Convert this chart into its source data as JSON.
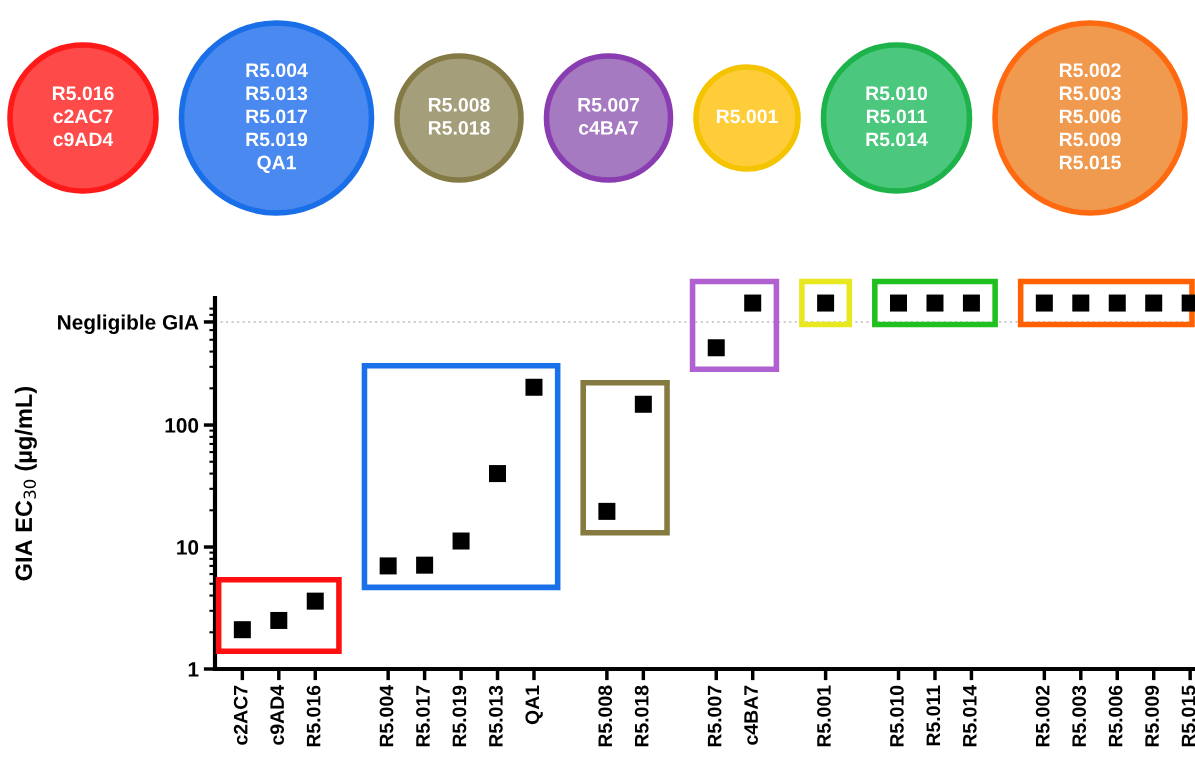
{
  "chart_data": {
    "type": "scatter",
    "ylabel": "GIA EC$_{30}$ (µg/mL)",
    "categories": [
      "c2AC7",
      "c9AD4",
      "R5.016",
      null,
      "R5.004",
      "R5.017",
      "R5.019",
      "R5.013",
      "QA1",
      null,
      "R5.008",
      "R5.018",
      null,
      "R5.007",
      "c4BA7",
      null,
      "R5.001",
      null,
      "R5.010",
      "R5.011",
      "R5.014",
      null,
      "R5.002",
      "R5.003",
      "R5.006",
      "R5.009",
      "R5.015"
    ],
    "values": [
      2.1,
      2.5,
      3.6,
      null,
      7.0,
      7.1,
      11.2,
      40,
      204,
      null,
      19.6,
      148,
      null,
      430,
      1000,
      null,
      1000,
      null,
      1000,
      1000,
      1000,
      null,
      1000,
      1000,
      1000,
      1000,
      1000
    ],
    "color": "#000000",
    "marker": "square",
    "log": "y",
    "ylim": [
      1,
      1100
    ],
    "yticks": [
      1,
      10,
      100,
      {
        "value": 700,
        "label": "Negligible GIA"
      }
    ],
    "ref_lines": [
      {
        "axis": "y",
        "value": 700,
        "color": "#cccccc",
        "line_style": "dotted"
      }
    ],
    "annotations": [
      "R5.016\nc2AC7\nc9AD4",
      "R5.004\nR5.013\nR5.017\nR5.019\nQA1",
      "R5.008\nR5.018",
      "R5.007\nc4BA7",
      "R5.001",
      "R5.010\nR5.011\nR5.014",
      "R5.002\nR5.003\nR5.006\nR5.009\nR5.015"
    ],
    "grid": false
  }
}
